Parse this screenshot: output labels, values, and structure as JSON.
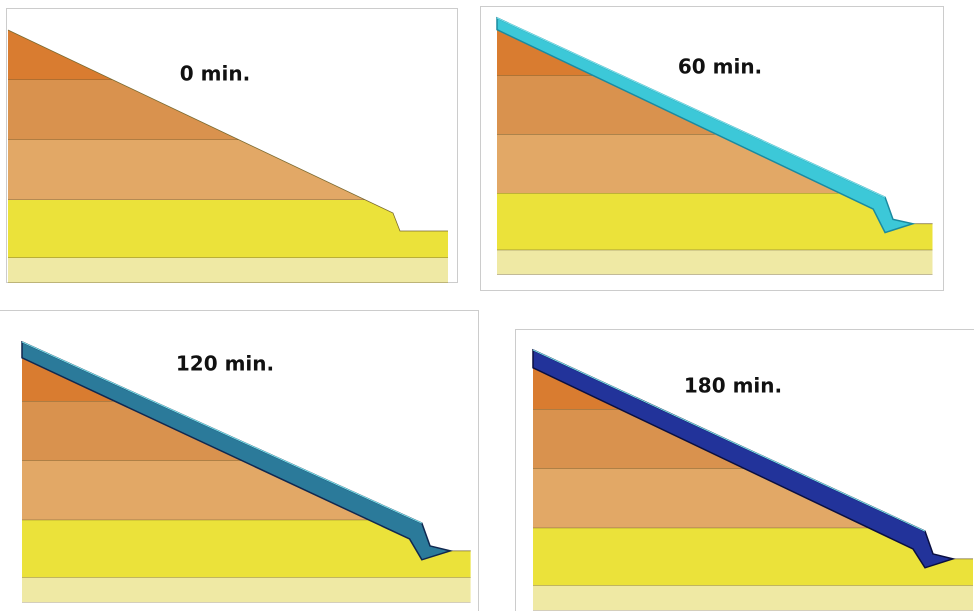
{
  "panels": [
    {
      "label": "0 min."
    },
    {
      "label": "60 min."
    },
    {
      "label": "120 min."
    },
    {
      "label": "180 min."
    }
  ]
}
